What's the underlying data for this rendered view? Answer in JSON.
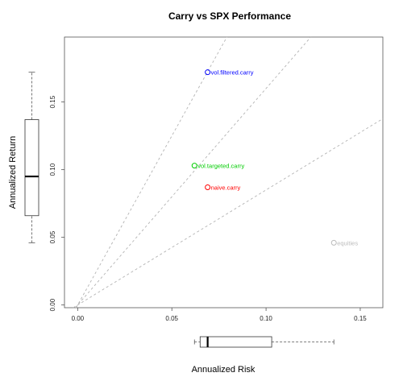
{
  "chart_data": {
    "type": "scatter",
    "title": "Carry vs SPX Performance",
    "xlabel": "Annualized Risk",
    "ylabel": "Annualized Return",
    "xlim": [
      -0.007,
      0.162
    ],
    "ylim": [
      -0.002,
      0.198
    ],
    "xticks": [
      "0.00",
      "0.05",
      "0.10",
      "0.15"
    ],
    "yticks": [
      "0.00",
      "0.05",
      "0.10",
      "0.15"
    ],
    "points": [
      {
        "label": "vol.filtered.carry",
        "x": 0.069,
        "y": 0.172,
        "color": "#0000ff"
      },
      {
        "label": "vol.targeted.carry",
        "x": 0.062,
        "y": 0.103,
        "color": "#00cc00"
      },
      {
        "label": "naive.carry",
        "x": 0.069,
        "y": 0.087,
        "color": "#ff0000"
      },
      {
        "label": "equities",
        "x": 0.136,
        "y": 0.046,
        "color": "#bbbbbb"
      }
    ],
    "reference_lines": [
      {
        "slope": 2.5
      },
      {
        "slope": 1.6
      },
      {
        "slope": 0.85
      }
    ],
    "boxplot_risk": {
      "min": 0.062,
      "q1": 0.065,
      "median": 0.069,
      "q3": 0.103,
      "max": 0.136
    },
    "boxplot_return": {
      "min": 0.046,
      "q1": 0.066,
      "median": 0.095,
      "q3": 0.137,
      "max": 0.172
    },
    "grid": false,
    "legend": "none"
  }
}
